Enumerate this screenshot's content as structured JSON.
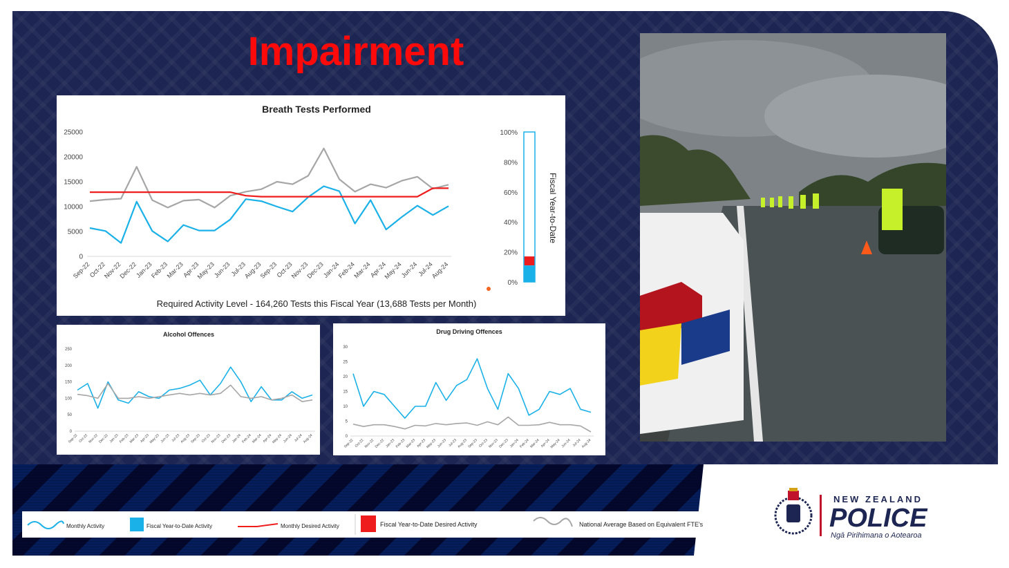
{
  "slide": {
    "title": "Impairment",
    "colors": {
      "navy": "#1d2652",
      "accent_red": "#ff0a0a",
      "cyan": "#1ab0e8",
      "gray": "#a6a6a6",
      "red": "#ee1c1c"
    }
  },
  "chart_data": [
    {
      "type": "line",
      "title": "Breath Tests Performed",
      "categories": [
        "Sep-22",
        "Oct-22",
        "Nov-22",
        "Dec-22",
        "Jan-23",
        "Feb-23",
        "Mar-23",
        "Apr-23",
        "May-23",
        "Jun-23",
        "Jul-23",
        "Aug-23",
        "Sep-23",
        "Oct-23",
        "Nov-23",
        "Dec-23",
        "Jan-24",
        "Feb-24",
        "Mar-24",
        "Apr-24",
        "May-24",
        "Jun-24",
        "Jul-24",
        "Aug-24"
      ],
      "series": [
        {
          "name": "Monthly Activity",
          "color": "#1ab0e8",
          "values": [
            5700,
            5100,
            2700,
            11000,
            5100,
            3000,
            6300,
            5200,
            5200,
            7400,
            11500,
            11100,
            10000,
            9000,
            11900,
            14100,
            13100,
            6600,
            11300,
            5400,
            7900,
            10200,
            8300,
            10100
          ]
        },
        {
          "name": "National Average Based on Equivalent FTE's",
          "color": "#a6a6a6",
          "values": [
            11100,
            11400,
            11600,
            18000,
            11300,
            9800,
            11200,
            11400,
            9800,
            12200,
            13000,
            13500,
            15000,
            14500,
            16200,
            21700,
            15500,
            13000,
            14500,
            13800,
            15200,
            16000,
            13600,
            14400
          ]
        },
        {
          "name": "Monthly Desired Activity",
          "color": "#ee1c1c",
          "values": [
            12900,
            12900,
            12900,
            12900,
            12900,
            12900,
            12900,
            12900,
            12900,
            12900,
            12200,
            12000,
            12000,
            12000,
            12000,
            12000,
            12000,
            12000,
            12000,
            12000,
            12000,
            12000,
            13700,
            13700
          ]
        }
      ],
      "ylim": [
        0,
        25000
      ],
      "yticks": [
        "0",
        "5000",
        "10000",
        "15000",
        "20000",
        "25000"
      ],
      "caption": "Required Activity Level - 164,260 Tests this Fiscal Year (13,688 Tests per Month)"
    },
    {
      "type": "bar",
      "title": "Fiscal Year-to-Date",
      "ylim": [
        0,
        100
      ],
      "yticks": [
        "0%",
        "20%",
        "40%",
        "60%",
        "80%",
        "100%"
      ],
      "series": [
        {
          "name": "Fiscal Year-to-Date Activity",
          "color": "#1ab0e8",
          "values": [
            11
          ]
        },
        {
          "name": "Fiscal Year-to-Date Desired Activity",
          "color": "#ee1c1c",
          "values": [
            17
          ]
        }
      ]
    },
    {
      "type": "line",
      "title": "Alcohol Offences",
      "categories": [
        "Sep-22",
        "Oct-22",
        "Nov-22",
        "Dec-22",
        "Jan-23",
        "Feb-23",
        "Mar-23",
        "Apr-23",
        "May-23",
        "Jun-23",
        "Jul-23",
        "Aug-23",
        "Sep-23",
        "Oct-23",
        "Nov-23",
        "Dec-23",
        "Jan-24",
        "Feb-24",
        "Mar-24",
        "Apr-24",
        "May-24",
        "Jun-24",
        "Jul-24",
        "Aug-24"
      ],
      "series": [
        {
          "name": "Monthly Activity",
          "color": "#1ab0e8",
          "values": [
            125,
            145,
            70,
            150,
            95,
            85,
            120,
            105,
            100,
            125,
            130,
            140,
            155,
            110,
            145,
            195,
            150,
            90,
            135,
            95,
            95,
            120,
            100,
            110
          ]
        },
        {
          "name": "National Average Based on Equivalent FTE's",
          "color": "#a6a6a6",
          "values": [
            112,
            108,
            100,
            145,
            100,
            100,
            105,
            100,
            105,
            110,
            115,
            110,
            115,
            110,
            115,
            140,
            105,
            100,
            105,
            95,
            100,
            110,
            90,
            95
          ]
        }
      ],
      "ylim": [
        0,
        250
      ],
      "yticks": [
        "0",
        "50",
        "100",
        "150",
        "200",
        "250"
      ]
    },
    {
      "type": "line",
      "title": "Drug Driving Offences",
      "categories": [
        "Sep-22",
        "Oct-22",
        "Nov-22",
        "Dec-22",
        "Jan-23",
        "Feb-23",
        "Mar-23",
        "Apr-23",
        "May-23",
        "Jun-23",
        "Jul-23",
        "Aug-23",
        "Sep-23",
        "Oct-23",
        "Nov-23",
        "Dec-23",
        "Jan-24",
        "Feb-24",
        "Mar-24",
        "Apr-24",
        "May-24",
        "Jun-24",
        "Jul-24",
        "Aug-24"
      ],
      "series": [
        {
          "name": "Monthly Activity",
          "color": "#1ab0e8",
          "values": [
            21,
            10,
            15,
            14,
            10,
            6,
            10,
            10,
            18,
            12,
            17,
            19,
            26,
            16,
            9,
            21,
            16,
            7,
            9,
            15,
            14,
            16,
            9,
            8
          ]
        },
        {
          "name": "National Average Based on Equivalent FTE's",
          "color": "#a6a6a6",
          "values": [
            4,
            3.2,
            3.8,
            3.8,
            3.2,
            2.4,
            3.6,
            3.4,
            4.2,
            3.8,
            4.2,
            4.4,
            3.6,
            4.8,
            3.8,
            6.4,
            3.6,
            3.6,
            3.8,
            4.6,
            3.8,
            3.8,
            3.4,
            1.4
          ]
        }
      ],
      "ylim": [
        0,
        30
      ],
      "yticks": [
        "0",
        "5",
        "10",
        "15",
        "20",
        "25",
        "30"
      ]
    }
  ],
  "legend": {
    "items": [
      {
        "label": "Monthly Activity",
        "icon": "cyan-wave-line-icon"
      },
      {
        "label": "Fiscal Year-to-Date Activity",
        "icon": "cyan-square-icon"
      },
      {
        "label": "Monthly Desired Activity",
        "icon": "red-line-icon"
      },
      {
        "label": "Fiscal Year-to-Date Desired Activity",
        "icon": "red-square-icon"
      },
      {
        "label": "National Average Based on Equivalent FTE's",
        "icon": "gray-wave-line-icon"
      }
    ]
  },
  "logo": {
    "line1": "NEW ZEALAND",
    "line2": "POLICE",
    "line3": "Ngā Pirihimana o Aotearoa",
    "emblem": "police-crest-icon"
  },
  "photo": {
    "subject": "roadside-checkpoint-photo"
  }
}
